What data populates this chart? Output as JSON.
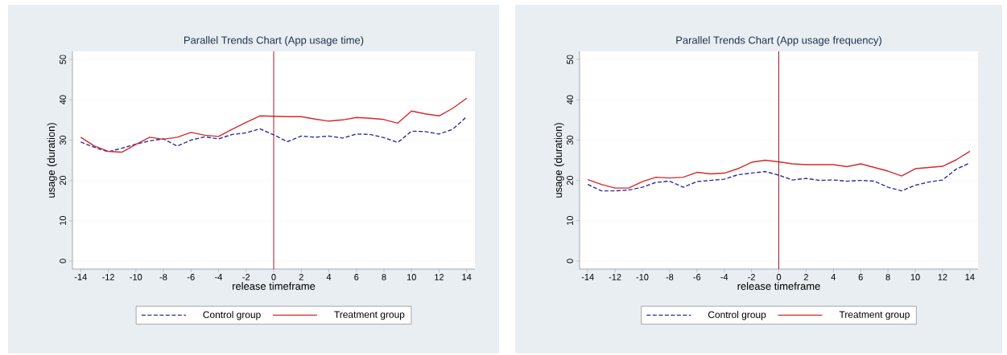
{
  "chart_data": [
    {
      "type": "line",
      "title": "Parallel Trends Chart (App usage time)",
      "xlabel": "release timeframe",
      "ylabel": "usage (duration)",
      "x": [
        -14,
        -13,
        -12,
        -11,
        -10,
        -9,
        -8,
        -7,
        -6,
        -5,
        -4,
        -3,
        -2,
        -1,
        0,
        1,
        2,
        3,
        4,
        5,
        6,
        7,
        8,
        9,
        10,
        11,
        12,
        13,
        14
      ],
      "series": [
        {
          "name": "Control group",
          "color": "#2e2e9e",
          "line_style": "dashed",
          "values": [
            29.5,
            28.2,
            27.1,
            28.0,
            29.0,
            29.8,
            30.3,
            28.5,
            30.0,
            30.8,
            30.3,
            31.4,
            31.8,
            32.8,
            31.3,
            29.6,
            31.0,
            30.7,
            31.0,
            30.5,
            31.5,
            31.4,
            30.6,
            29.4,
            32.2,
            32.1,
            31.5,
            32.7,
            35.8
          ]
        },
        {
          "name": "Treatment group",
          "color": "#d42a2a",
          "line_style": "solid",
          "values": [
            30.7,
            28.5,
            27.2,
            27.0,
            28.9,
            30.7,
            30.2,
            30.7,
            31.9,
            31.2,
            30.9,
            32.7,
            34.4,
            36.0,
            35.9,
            35.8,
            35.8,
            35.2,
            34.7,
            35.0,
            35.6,
            35.4,
            35.1,
            34.2,
            37.2,
            36.5,
            36.0,
            37.9,
            40.4
          ]
        }
      ],
      "xlim": [
        -14.6,
        14.6
      ],
      "ylim": [
        -2,
        52
      ],
      "xticks": [
        -14,
        -12,
        -10,
        -8,
        -6,
        -4,
        -2,
        0,
        2,
        4,
        6,
        8,
        10,
        12,
        14
      ],
      "yticks": [
        0,
        10,
        20,
        30,
        40,
        50
      ],
      "grid": "y",
      "legend": "bottom",
      "ref_lines": [
        {
          "axis": "x",
          "value": 0,
          "color": "#a01c2c"
        }
      ]
    },
    {
      "type": "line",
      "title": "Parallel Trends Chart (App usage frequency)",
      "xlabel": "release timeframe",
      "ylabel": "usage (duration)",
      "x": [
        -14,
        -13,
        -12,
        -11,
        -10,
        -9,
        -8,
        -7,
        -6,
        -5,
        -4,
        -3,
        -2,
        -1,
        0,
        1,
        2,
        3,
        4,
        5,
        6,
        7,
        8,
        9,
        10,
        11,
        12,
        13,
        14
      ],
      "series": [
        {
          "name": "Control group",
          "color": "#2e2e9e",
          "line_style": "dashed",
          "values": [
            19.0,
            17.4,
            17.4,
            17.6,
            18.3,
            19.5,
            19.8,
            18.3,
            19.7,
            20.0,
            20.3,
            21.4,
            21.8,
            22.2,
            21.3,
            20.1,
            20.5,
            20.0,
            20.1,
            19.8,
            20.0,
            19.8,
            18.3,
            17.4,
            18.8,
            19.6,
            20.1,
            22.8,
            24.3
          ]
        },
        {
          "name": "Treatment group",
          "color": "#d42a2a",
          "line_style": "solid",
          "values": [
            20.2,
            19.0,
            18.1,
            18.1,
            19.7,
            20.8,
            20.6,
            20.8,
            22.0,
            21.6,
            21.8,
            22.9,
            24.5,
            25.0,
            24.6,
            24.1,
            23.9,
            23.9,
            23.9,
            23.4,
            24.1,
            23.2,
            22.3,
            21.1,
            22.9,
            23.2,
            23.5,
            25.1,
            27.2
          ]
        }
      ],
      "xlim": [
        -14.6,
        14.6
      ],
      "ylim": [
        -2,
        52
      ],
      "xticks": [
        -14,
        -12,
        -10,
        -8,
        -6,
        -4,
        -2,
        0,
        2,
        4,
        6,
        8,
        10,
        12,
        14
      ],
      "yticks": [
        0,
        10,
        20,
        30,
        40,
        50
      ],
      "grid": "y",
      "legend": "bottom",
      "ref_lines": [
        {
          "axis": "x",
          "value": 0,
          "color": "#a01c2c"
        }
      ]
    }
  ]
}
